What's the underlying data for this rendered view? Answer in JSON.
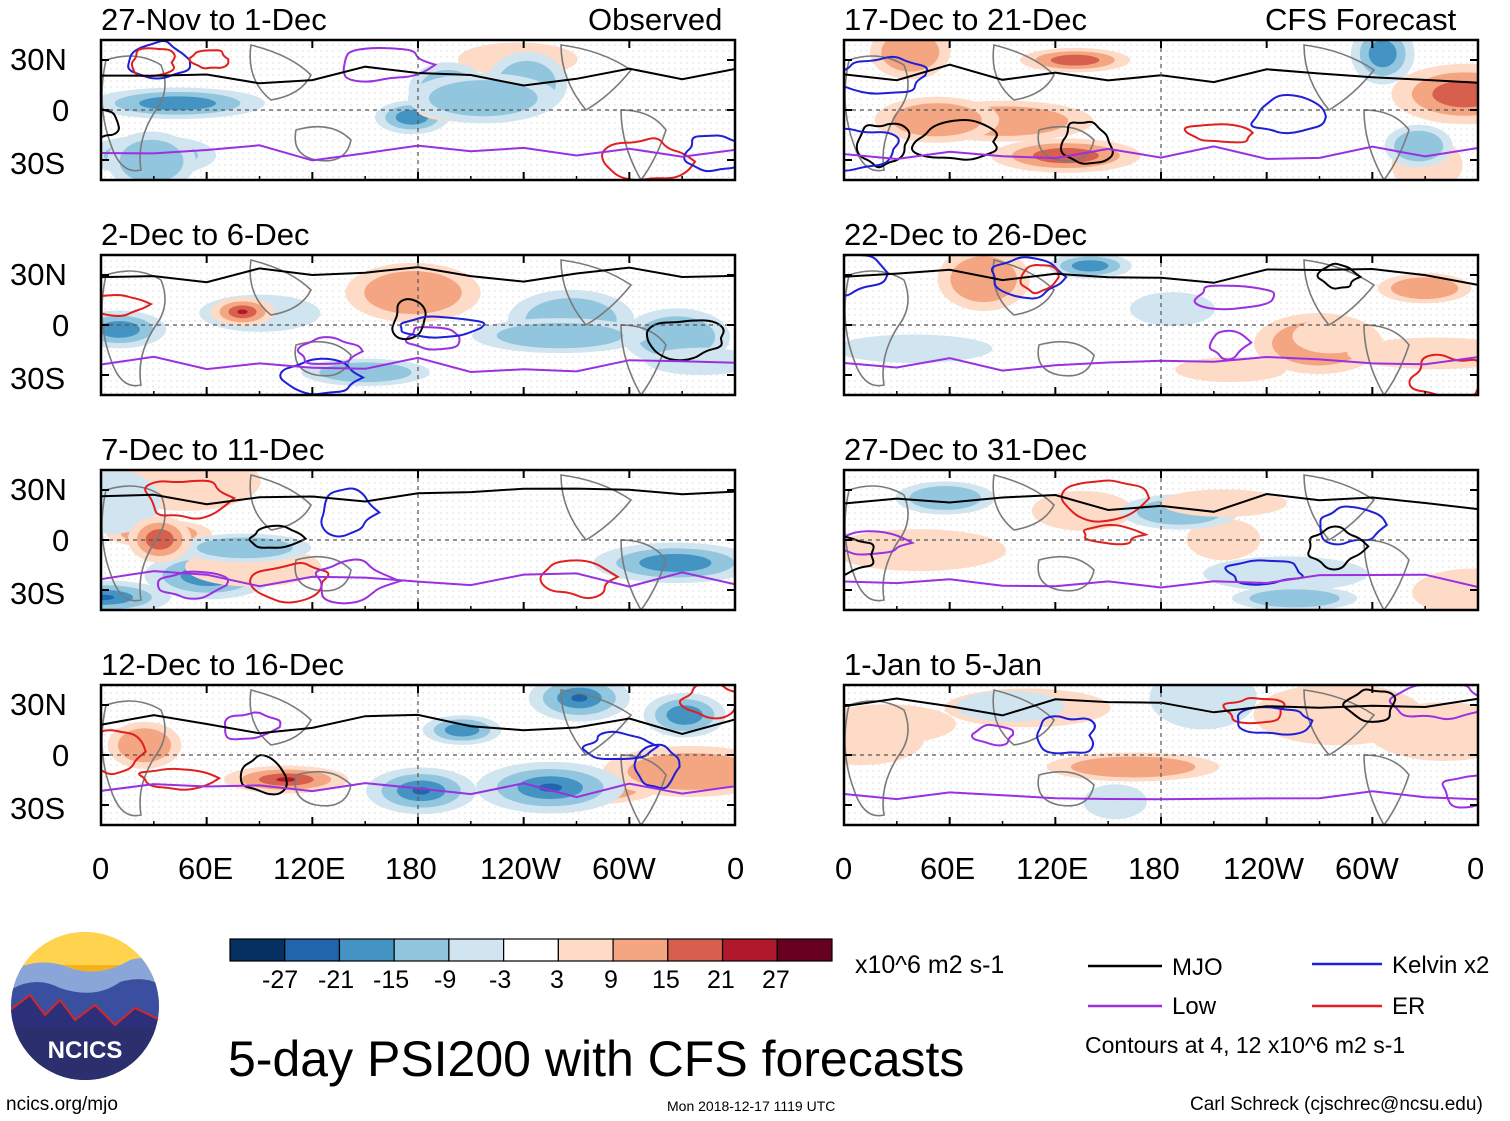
{
  "title": "5-day PSI200 with CFS forecasts",
  "observed_label": "Observed",
  "forecast_label": "CFS Forecast",
  "latitudes": [
    "30N",
    "0",
    "30S"
  ],
  "longitudes": [
    "0",
    "60E",
    "120E",
    "180",
    "120W",
    "60W",
    "0"
  ],
  "panels_observed": [
    "27-Nov to 1-Dec",
    "2-Dec to 6-Dec",
    "7-Dec to 11-Dec",
    "12-Dec to 16-Dec"
  ],
  "panels_forecast": [
    "17-Dec to 21-Dec",
    "22-Dec to 26-Dec",
    "27-Dec to 31-Dec",
    "1-Jan to 5-Jan"
  ],
  "colorbar": {
    "levels": [
      "-27",
      "-21",
      "-15",
      "-9",
      "-3",
      "3",
      "9",
      "15",
      "21",
      "27"
    ],
    "colors": [
      "#053061",
      "#2166ac",
      "#4393c3",
      "#92c5de",
      "#d1e5f0",
      "#ffffff",
      "#fddbc7",
      "#f4a582",
      "#d6604d",
      "#b2182b",
      "#67001f"
    ],
    "units": "x10^6 m2 s-1"
  },
  "legend": {
    "items": [
      {
        "label": "MJO",
        "color": "#000000"
      },
      {
        "label": "Kelvin x2",
        "color": "#1f1fd6"
      },
      {
        "label": "Low",
        "color": "#9b30e0"
      },
      {
        "label": "ER",
        "color": "#e01f1f"
      }
    ],
    "note": "Contours at 4, 12 x10^6 m2 s-1"
  },
  "logo_text": "NCICS",
  "url": "ncics.org/mjo",
  "timestamp": "Mon 2018-12-17 1119 UTC",
  "credit": "Carl Schreck (cjschrec@ncsu.edu)"
}
